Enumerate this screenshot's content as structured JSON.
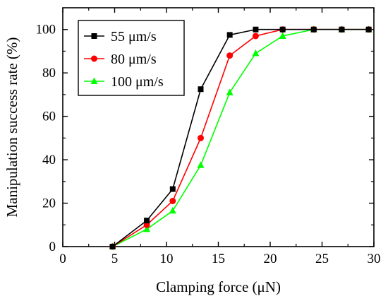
{
  "chart_data": {
    "type": "line",
    "title": "",
    "xlabel": "Clamping force (μN)",
    "ylabel": "Manipulation success rate (%)",
    "xlim": [
      0,
      30
    ],
    "ylim": [
      0,
      110
    ],
    "xticks": [
      0,
      5,
      10,
      15,
      20,
      25,
      30
    ],
    "yticks": [
      0,
      20,
      40,
      60,
      80,
      100
    ],
    "grid": false,
    "legend_position": "top-left",
    "series": [
      {
        "name": "55 μm/s",
        "color": "#000000",
        "marker": "square",
        "x": [
          4.8,
          8.1,
          10.6,
          13.3,
          16.1,
          18.6,
          21.2,
          24.2,
          26.9,
          29.5
        ],
        "y": [
          0,
          12,
          26.5,
          72.5,
          97.5,
          100,
          100,
          100,
          100,
          100
        ]
      },
      {
        "name": "80 μm/s",
        "color": "#ff0000",
        "marker": "circle",
        "x": [
          4.8,
          8.1,
          10.6,
          13.3,
          16.1,
          18.6,
          21.2,
          24.2,
          26.9,
          29.5
        ],
        "y": [
          0,
          10,
          21,
          50,
          88,
          97,
          100,
          100,
          100,
          100
        ]
      },
      {
        "name": "100 μm/s",
        "color": "#00ff00",
        "marker": "triangle",
        "x": [
          4.8,
          8.1,
          10.6,
          13.3,
          16.1,
          18.6,
          21.2,
          24.2,
          26.9,
          29.5
        ],
        "y": [
          0,
          8,
          16.5,
          37.5,
          71,
          89,
          97,
          100,
          100,
          100
        ]
      }
    ]
  }
}
